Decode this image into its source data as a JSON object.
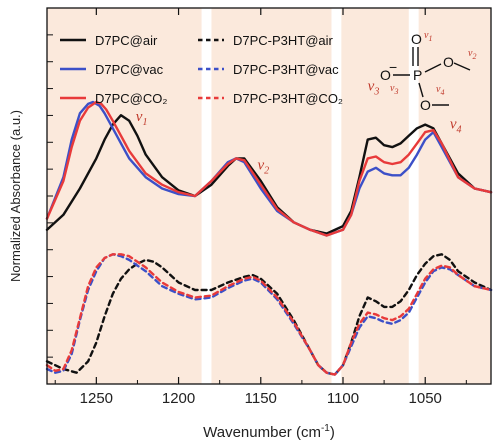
{
  "chart_data": {
    "type": "line",
    "xlabel": "Wavenumber (cm",
    "xlabel_sup": "-1",
    "xlabel_close": ")",
    "ylabel": "Normalized Absorbance (a.u.)",
    "xlim": [
      1280,
      1010
    ],
    "ylim": [
      0,
      1
    ],
    "x_reversed": true,
    "x_ticks": [
      1250,
      1200,
      1150,
      1100,
      1050
    ],
    "y_ticks_shown_without_labels": true,
    "grid": false,
    "legend_placement": "top-left",
    "background": {
      "color": "#fbe9dc",
      "white_gaps": [
        {
          "center": 1183,
          "width": 6
        },
        {
          "center": 1104,
          "width": 6
        },
        {
          "center": 1057,
          "width": 6
        }
      ]
    },
    "band_labels": [
      {
        "text": "v",
        "sub": "1",
        "x": 1226,
        "y": 0.7
      },
      {
        "text": "v",
        "sub": "2",
        "x": 1152,
        "y": 0.57
      },
      {
        "text": "v",
        "sub": "3",
        "x": 1085,
        "y": 0.78
      },
      {
        "text": "v",
        "sub": "4",
        "x": 1035,
        "y": 0.68
      }
    ],
    "series": [
      {
        "name": "D7PC@air",
        "color": "#111111",
        "dash": "solid",
        "x": [
          1280,
          1270,
          1260,
          1250,
          1245,
          1240,
          1235,
          1230,
          1225,
          1220,
          1210,
          1200,
          1190,
          1180,
          1170,
          1165,
          1160,
          1150,
          1140,
          1130,
          1120,
          1110,
          1100,
          1095,
          1090,
          1085,
          1080,
          1075,
          1070,
          1065,
          1060,
          1055,
          1050,
          1045,
          1040,
          1030,
          1020,
          1010
        ],
        "y": [
          0.41,
          0.45,
          0.52,
          0.6,
          0.65,
          0.69,
          0.715,
          0.7,
          0.66,
          0.61,
          0.55,
          0.515,
          0.5,
          0.53,
          0.58,
          0.6,
          0.6,
          0.54,
          0.47,
          0.43,
          0.41,
          0.4,
          0.42,
          0.46,
          0.55,
          0.65,
          0.655,
          0.635,
          0.63,
          0.64,
          0.66,
          0.68,
          0.69,
          0.68,
          0.64,
          0.56,
          0.52,
          0.51
        ]
      },
      {
        "name": "D7PC@vac",
        "color": "#3c50c8",
        "dash": "solid",
        "x": [
          1280,
          1270,
          1265,
          1260,
          1255,
          1252,
          1248,
          1245,
          1240,
          1235,
          1230,
          1220,
          1210,
          1200,
          1190,
          1180,
          1170,
          1165,
          1160,
          1150,
          1140,
          1130,
          1120,
          1110,
          1100,
          1095,
          1090,
          1085,
          1080,
          1075,
          1070,
          1065,
          1060,
          1055,
          1050,
          1045,
          1040,
          1030,
          1020,
          1010
        ],
        "y": [
          0.44,
          0.55,
          0.65,
          0.72,
          0.745,
          0.75,
          0.74,
          0.72,
          0.68,
          0.64,
          0.6,
          0.55,
          0.52,
          0.505,
          0.5,
          0.54,
          0.59,
          0.6,
          0.59,
          0.52,
          0.46,
          0.43,
          0.41,
          0.395,
          0.41,
          0.45,
          0.52,
          0.565,
          0.575,
          0.56,
          0.555,
          0.555,
          0.575,
          0.61,
          0.65,
          0.67,
          0.63,
          0.55,
          0.52,
          0.51
        ]
      },
      {
        "name": "D7PC@CO₂",
        "color": "#e83a3a",
        "dash": "solid",
        "x": [
          1280,
          1270,
          1265,
          1260,
          1255,
          1250,
          1247,
          1244,
          1240,
          1235,
          1230,
          1220,
          1210,
          1200,
          1190,
          1180,
          1170,
          1165,
          1160,
          1150,
          1140,
          1130,
          1120,
          1110,
          1100,
          1095,
          1090,
          1085,
          1080,
          1075,
          1070,
          1065,
          1060,
          1055,
          1050,
          1045,
          1040,
          1030,
          1020,
          1010
        ],
        "y": [
          0.44,
          0.54,
          0.63,
          0.7,
          0.735,
          0.75,
          0.745,
          0.73,
          0.7,
          0.66,
          0.62,
          0.56,
          0.53,
          0.51,
          0.5,
          0.54,
          0.585,
          0.6,
          0.595,
          0.53,
          0.465,
          0.43,
          0.41,
          0.395,
          0.41,
          0.45,
          0.54,
          0.6,
          0.605,
          0.59,
          0.585,
          0.59,
          0.61,
          0.64,
          0.67,
          0.675,
          0.64,
          0.55,
          0.52,
          0.51
        ]
      },
      {
        "name": "D7PC-P3HT@air",
        "color": "#111111",
        "dash": "dashed",
        "x": [
          1280,
          1270,
          1262,
          1255,
          1250,
          1245,
          1240,
          1235,
          1230,
          1225,
          1220,
          1215,
          1210,
          1200,
          1190,
          1180,
          1170,
          1160,
          1155,
          1150,
          1140,
          1130,
          1120,
          1115,
          1110,
          1105,
          1100,
          1095,
          1090,
          1085,
          1080,
          1075,
          1070,
          1065,
          1060,
          1055,
          1050,
          1045,
          1040,
          1035,
          1030,
          1020,
          1010
        ],
        "y": [
          0.06,
          0.04,
          0.03,
          0.06,
          0.11,
          0.18,
          0.24,
          0.28,
          0.305,
          0.32,
          0.33,
          0.325,
          0.31,
          0.27,
          0.25,
          0.25,
          0.27,
          0.285,
          0.29,
          0.28,
          0.24,
          0.17,
          0.09,
          0.05,
          0.03,
          0.025,
          0.05,
          0.11,
          0.18,
          0.23,
          0.22,
          0.205,
          0.205,
          0.22,
          0.25,
          0.29,
          0.32,
          0.34,
          0.345,
          0.33,
          0.3,
          0.27,
          0.25
        ]
      },
      {
        "name": "D7PC-P3HT@vac",
        "color": "#3c50c8",
        "dash": "dashed",
        "x": [
          1280,
          1275,
          1270,
          1265,
          1260,
          1255,
          1250,
          1245,
          1240,
          1235,
          1230,
          1225,
          1220,
          1215,
          1210,
          1200,
          1190,
          1180,
          1170,
          1160,
          1155,
          1150,
          1140,
          1130,
          1120,
          1115,
          1110,
          1105,
          1100,
          1095,
          1090,
          1085,
          1080,
          1075,
          1070,
          1065,
          1060,
          1055,
          1050,
          1045,
          1040,
          1035,
          1030,
          1020,
          1010
        ],
        "y": [
          0.04,
          0.03,
          0.035,
          0.08,
          0.17,
          0.25,
          0.3,
          0.335,
          0.345,
          0.34,
          0.33,
          0.315,
          0.3,
          0.28,
          0.26,
          0.24,
          0.225,
          0.23,
          0.255,
          0.275,
          0.28,
          0.27,
          0.225,
          0.16,
          0.09,
          0.05,
          0.03,
          0.025,
          0.05,
          0.1,
          0.15,
          0.18,
          0.175,
          0.165,
          0.16,
          0.17,
          0.19,
          0.23,
          0.27,
          0.3,
          0.31,
          0.305,
          0.29,
          0.26,
          0.25
        ]
      },
      {
        "name": "D7PC-P3HT@CO₂",
        "color": "#e83a3a",
        "dash": "dashed",
        "x": [
          1280,
          1275,
          1270,
          1265,
          1260,
          1255,
          1250,
          1245,
          1240,
          1235,
          1230,
          1225,
          1220,
          1215,
          1210,
          1200,
          1190,
          1180,
          1170,
          1160,
          1155,
          1150,
          1140,
          1130,
          1120,
          1115,
          1110,
          1105,
          1100,
          1095,
          1090,
          1085,
          1080,
          1075,
          1070,
          1065,
          1060,
          1055,
          1050,
          1045,
          1040,
          1035,
          1030,
          1020,
          1010
        ],
        "y": [
          0.05,
          0.035,
          0.04,
          0.09,
          0.175,
          0.26,
          0.31,
          0.335,
          0.345,
          0.345,
          0.34,
          0.325,
          0.31,
          0.29,
          0.27,
          0.245,
          0.23,
          0.235,
          0.26,
          0.28,
          0.285,
          0.275,
          0.23,
          0.165,
          0.09,
          0.05,
          0.03,
          0.025,
          0.05,
          0.11,
          0.16,
          0.19,
          0.185,
          0.175,
          0.17,
          0.18,
          0.2,
          0.24,
          0.28,
          0.305,
          0.315,
          0.31,
          0.29,
          0.26,
          0.25
        ]
      }
    ],
    "legend": [
      {
        "label": "D7PC@air",
        "color": "#111111",
        "dash": "solid"
      },
      {
        "label": "D7PC-P3HT@air",
        "color": "#111111",
        "dash": "dashed"
      },
      {
        "label": "D7PC@vac",
        "color": "#3c50c8",
        "dash": "solid"
      },
      {
        "label": "D7PC-P3HT@vac",
        "color": "#3c50c8",
        "dash": "dashed"
      },
      {
        "label": "D7PC@CO₂",
        "color": "#e83a3a",
        "dash": "solid"
      },
      {
        "label": "D7PC-P3HT@CO₂",
        "color": "#e83a3a",
        "dash": "dashed"
      }
    ],
    "molecule": {
      "atoms": [
        "O",
        "P",
        "O",
        "O",
        "O"
      ],
      "minus": "−",
      "labels": [
        {
          "text": "v",
          "sub": "1"
        },
        {
          "text": "v",
          "sub": "2"
        },
        {
          "text": "v",
          "sub": "3"
        },
        {
          "text": "v",
          "sub": "4"
        }
      ],
      "label_color": "#c0392b"
    }
  }
}
